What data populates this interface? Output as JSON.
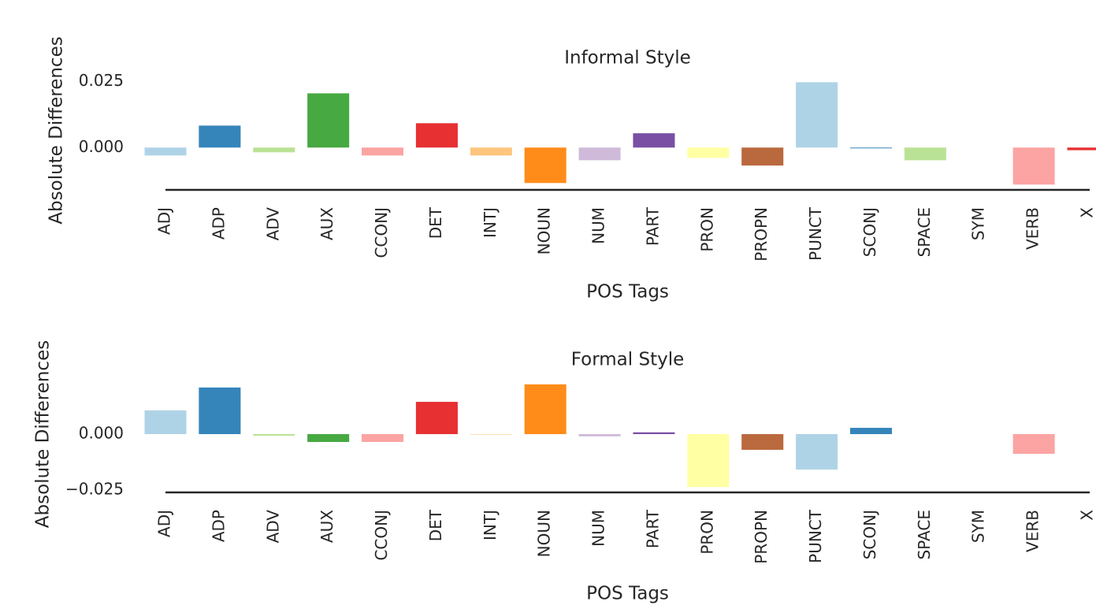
{
  "chart_data": [
    {
      "type": "bar",
      "title": "Informal Style",
      "xlabel": "POS Tags",
      "ylabel": "Absolute Differences",
      "categories": [
        "ADJ",
        "ADP",
        "ADV",
        "AUX",
        "CCONJ",
        "DET",
        "INTJ",
        "NOUN",
        "NUM",
        "PART",
        "PRON",
        "PROPN",
        "PUNCT",
        "SCONJ",
        "SPACE",
        "SYM",
        "VERB",
        "X"
      ],
      "values": [
        -0.003,
        0.0083,
        -0.0018,
        0.0205,
        -0.003,
        0.0092,
        -0.003,
        -0.0134,
        -0.0048,
        0.0054,
        -0.0039,
        -0.0068,
        0.0247,
        -0.0003,
        -0.0048,
        0,
        -0.014,
        -0.001
      ],
      "colors": [
        "#a6cee3",
        "#1f78b4",
        "#b2df8a",
        "#33a02c",
        "#fb9a99",
        "#e31a1c",
        "#fdbf6f",
        "#ff7f00",
        "#cab2d6",
        "#6a3d9a",
        "#ffff99",
        "#b15928",
        "#a6cee3",
        "#1f78b4",
        "#b2df8a",
        "#33a02c",
        "#fb9a99",
        "#e31a1c"
      ],
      "ylim": [
        -0.016,
        0.026
      ],
      "yticks": [
        {
          "value": 0,
          "label": "0.000"
        },
        {
          "value": 0.025,
          "label": "0.025"
        }
      ]
    },
    {
      "type": "bar",
      "title": "Formal Style",
      "xlabel": "POS Tags",
      "ylabel": "Absolute Differences",
      "categories": [
        "ADJ",
        "ADP",
        "ADV",
        "AUX",
        "CCONJ",
        "DET",
        "INTJ",
        "NOUN",
        "NUM",
        "PART",
        "PRON",
        "PROPN",
        "PUNCT",
        "SCONJ",
        "SPACE",
        "SYM",
        "VERB",
        "X"
      ],
      "values": [
        0.0106,
        0.0208,
        -0.0007,
        -0.0035,
        -0.0035,
        0.0144,
        -0.0002,
        0.0222,
        -0.001,
        0.0008,
        -0.0236,
        -0.007,
        -0.0158,
        0.0028,
        0,
        0,
        -0.0088,
        0
      ],
      "colors": [
        "#a6cee3",
        "#1f78b4",
        "#b2df8a",
        "#33a02c",
        "#fb9a99",
        "#e31a1c",
        "#fdbf6f",
        "#ff7f00",
        "#cab2d6",
        "#6a3d9a",
        "#ffff99",
        "#b15928",
        "#a6cee3",
        "#1f78b4",
        "#b2df8a",
        "#33a02c",
        "#fb9a99",
        "#e31a1c"
      ],
      "ylim": [
        -0.026,
        0.0225
      ],
      "yticks": [
        {
          "value": -0.025,
          "label": "−0.025"
        },
        {
          "value": 0,
          "label": "0.000"
        }
      ]
    }
  ]
}
